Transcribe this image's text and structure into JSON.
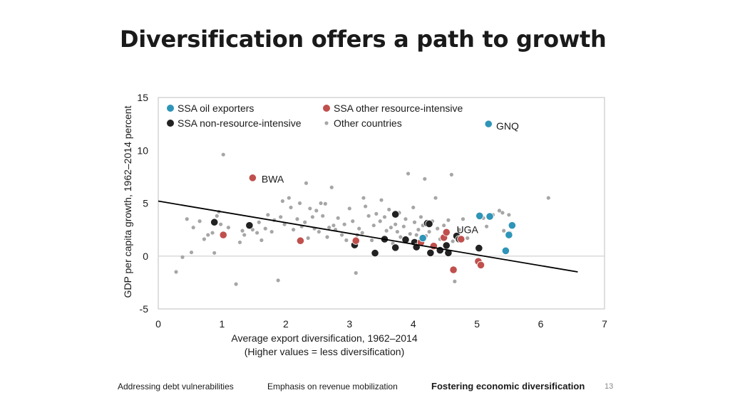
{
  "title": "Diversification offers a path to growth",
  "footer": {
    "nav": [
      {
        "label": "Addressing debt vulnerabilities",
        "active": false
      },
      {
        "label": "Emphasis on revenue mobilization",
        "active": false
      },
      {
        "label": "Fostering economic diversification",
        "active": true
      }
    ],
    "page_number": "13"
  },
  "chart_data": {
    "type": "scatter",
    "xlabel": "Average export diversification, 1962–2014",
    "xlabel2": "(Higher values = less diversification)",
    "ylabel": "GDP per capita growth, 1962–2014 percent",
    "xlim": [
      0,
      7
    ],
    "ylim": [
      -5,
      15
    ],
    "x_ticks": [
      0,
      1,
      2,
      3,
      4,
      5,
      6,
      7
    ],
    "y_ticks": [
      -5,
      0,
      5,
      10,
      15
    ],
    "colors": {
      "oil": "#2e95b8",
      "other_resource": "#c0504d",
      "non_resource": "#222222",
      "other": "#a6a6a6",
      "trend": "#000000",
      "zero_line": "#d9d9d9",
      "frame": "#bfbfbf"
    },
    "legend": [
      {
        "key": "oil",
        "label": "SSA oil exporters"
      },
      {
        "key": "other_resource",
        "label": "SSA other resource-intensive"
      },
      {
        "key": "non_resource",
        "label": "SSA non-resource-intensive"
      },
      {
        "key": "other",
        "label": "Other countries"
      }
    ],
    "trend_line": {
      "x": [
        0,
        6.58
      ],
      "y": [
        5.2,
        -1.5
      ]
    },
    "annotations": [
      {
        "text": "GNQ",
        "x": 5.3,
        "y": 12.3
      },
      {
        "text": "BWA",
        "x": 1.62,
        "y": 7.3
      },
      {
        "text": "UGA",
        "x": 4.68,
        "y": 2.5
      }
    ],
    "series": [
      {
        "key": "oil",
        "points": [
          [
            5.18,
            12.5
          ],
          [
            5.04,
            3.8
          ],
          [
            5.2,
            3.75
          ],
          [
            5.55,
            2.9
          ],
          [
            5.5,
            2.0
          ],
          [
            5.45,
            0.5
          ],
          [
            4.15,
            1.7
          ]
        ]
      },
      {
        "key": "other_resource",
        "points": [
          [
            1.48,
            7.4
          ],
          [
            1.02,
            2.0
          ],
          [
            2.23,
            1.45
          ],
          [
            3.1,
            1.45
          ],
          [
            4.12,
            1.3
          ],
          [
            4.32,
            0.95
          ],
          [
            4.48,
            1.75
          ],
          [
            4.52,
            2.25
          ],
          [
            4.75,
            1.6
          ],
          [
            5.02,
            -0.5
          ],
          [
            5.06,
            -0.85
          ],
          [
            4.63,
            -1.3
          ]
        ]
      },
      {
        "key": "non_resource",
        "points": [
          [
            0.88,
            3.2
          ],
          [
            1.43,
            2.9
          ],
          [
            3.72,
            3.95
          ],
          [
            4.22,
            3.1
          ],
          [
            4.25,
            3.05
          ],
          [
            3.08,
            1.05
          ],
          [
            3.4,
            0.28
          ],
          [
            3.55,
            1.6
          ],
          [
            3.72,
            0.8
          ],
          [
            3.88,
            1.55
          ],
          [
            4.02,
            1.3
          ],
          [
            4.05,
            0.85
          ],
          [
            4.27,
            0.3
          ],
          [
            4.42,
            0.55
          ],
          [
            4.52,
            1.0
          ],
          [
            4.55,
            0.3
          ],
          [
            4.68,
            1.9
          ],
          [
            4.72,
            1.6
          ],
          [
            5.03,
            0.75
          ]
        ]
      },
      {
        "key": "other",
        "points": [
          [
            0.28,
            -1.5
          ],
          [
            0.38,
            -0.1
          ],
          [
            0.45,
            3.5
          ],
          [
            0.52,
            0.35
          ],
          [
            0.55,
            2.7
          ],
          [
            0.65,
            3.3
          ],
          [
            0.72,
            1.6
          ],
          [
            0.78,
            2.0
          ],
          [
            0.85,
            2.2
          ],
          [
            0.88,
            0.3
          ],
          [
            0.92,
            3.8
          ],
          [
            0.95,
            4.2
          ],
          [
            0.98,
            3.0
          ],
          [
            1.02,
            9.6
          ],
          [
            1.1,
            2.7
          ],
          [
            1.22,
            -2.65
          ],
          [
            1.28,
            1.3
          ],
          [
            1.32,
            2.4
          ],
          [
            1.35,
            2.0
          ],
          [
            1.42,
            3.0
          ],
          [
            1.48,
            2.5
          ],
          [
            1.55,
            2.2
          ],
          [
            1.58,
            3.2
          ],
          [
            1.62,
            1.5
          ],
          [
            1.68,
            2.6
          ],
          [
            1.72,
            3.9
          ],
          [
            1.78,
            2.3
          ],
          [
            1.82,
            3.4
          ],
          [
            1.88,
            -2.3
          ],
          [
            1.92,
            3.7
          ],
          [
            1.95,
            5.2
          ],
          [
            1.98,
            3.0
          ],
          [
            2.05,
            5.5
          ],
          [
            2.08,
            4.6
          ],
          [
            2.12,
            2.5
          ],
          [
            2.18,
            3.5
          ],
          [
            2.22,
            5.0
          ],
          [
            2.25,
            2.8
          ],
          [
            2.3,
            3.2
          ],
          [
            2.32,
            6.9
          ],
          [
            2.35,
            1.7
          ],
          [
            2.38,
            4.5
          ],
          [
            2.42,
            3.7
          ],
          [
            2.45,
            2.6
          ],
          [
            2.48,
            4.3
          ],
          [
            2.52,
            2.3
          ],
          [
            2.55,
            5.0
          ],
          [
            2.58,
            3.8
          ],
          [
            2.62,
            4.95
          ],
          [
            2.65,
            1.8
          ],
          [
            2.68,
            2.7
          ],
          [
            2.72,
            6.5
          ],
          [
            2.75,
            2.9
          ],
          [
            2.78,
            2.5
          ],
          [
            2.82,
            3.6
          ],
          [
            2.88,
            2.0
          ],
          [
            2.92,
            3.0
          ],
          [
            2.95,
            1.5
          ],
          [
            3.0,
            4.5
          ],
          [
            3.05,
            3.3
          ],
          [
            3.1,
            -1.6
          ],
          [
            3.12,
            2.0
          ],
          [
            3.15,
            2.6
          ],
          [
            3.2,
            2.2
          ],
          [
            3.22,
            5.5
          ],
          [
            3.25,
            4.7
          ],
          [
            3.3,
            3.8
          ],
          [
            3.35,
            1.5
          ],
          [
            3.38,
            2.9
          ],
          [
            3.42,
            4.0
          ],
          [
            3.48,
            3.3
          ],
          [
            3.5,
            5.3
          ],
          [
            3.55,
            3.7
          ],
          [
            3.58,
            2.4
          ],
          [
            3.62,
            4.4
          ],
          [
            3.65,
            2.7
          ],
          [
            3.68,
            1.2
          ],
          [
            3.72,
            3.0
          ],
          [
            3.75,
            2.3
          ],
          [
            3.78,
            4.1
          ],
          [
            3.8,
            1.8
          ],
          [
            3.85,
            2.8
          ],
          [
            3.88,
            3.5
          ],
          [
            3.92,
            7.8
          ],
          [
            3.95,
            2.1
          ],
          [
            4.0,
            4.6
          ],
          [
            4.02,
            3.2
          ],
          [
            4.05,
            2.0
          ],
          [
            4.08,
            2.5
          ],
          [
            4.12,
            3.7
          ],
          [
            4.15,
            2.9
          ],
          [
            4.18,
            7.3
          ],
          [
            4.2,
            1.9
          ],
          [
            4.25,
            2.3
          ],
          [
            4.3,
            3.3
          ],
          [
            4.35,
            5.5
          ],
          [
            4.38,
            2.6
          ],
          [
            4.42,
            1.6
          ],
          [
            4.48,
            2.9
          ],
          [
            4.55,
            3.4
          ],
          [
            4.6,
            7.7
          ],
          [
            4.62,
            1.4
          ],
          [
            4.65,
            -2.4
          ],
          [
            4.72,
            2.5
          ],
          [
            4.78,
            3.5
          ],
          [
            4.85,
            1.7
          ],
          [
            5.1,
            3.6
          ],
          [
            5.15,
            2.8
          ],
          [
            5.25,
            3.9
          ],
          [
            5.35,
            4.3
          ],
          [
            5.4,
            4.1
          ],
          [
            5.42,
            2.4
          ],
          [
            5.5,
            3.9
          ],
          [
            5.52,
            2.2
          ],
          [
            6.12,
            5.5
          ]
        ]
      }
    ]
  }
}
